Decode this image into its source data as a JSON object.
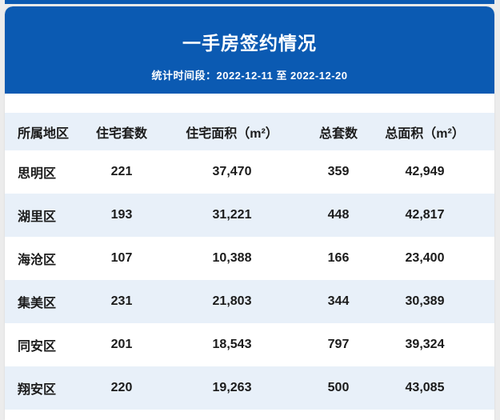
{
  "header": {
    "title": "一手房签约情况",
    "subtitle": "统计时间段：2022-12-11 至 2022-12-20"
  },
  "table": {
    "columns": [
      "所属地区",
      "住宅套数",
      "住宅面积（m²）",
      "总套数",
      "总面积（m²）"
    ],
    "rows": [
      [
        "思明区",
        "221",
        "37,470",
        "359",
        "42,949"
      ],
      [
        "湖里区",
        "193",
        "31,221",
        "448",
        "42,817"
      ],
      [
        "海沧区",
        "107",
        "10,388",
        "166",
        "23,400"
      ],
      [
        "集美区",
        "231",
        "21,803",
        "344",
        "30,389"
      ],
      [
        "同安区",
        "201",
        "18,543",
        "797",
        "39,324"
      ],
      [
        "翔安区",
        "220",
        "19,263",
        "500",
        "43,085"
      ]
    ]
  },
  "colors": {
    "primary_blue": "#0b5ab2",
    "band_light_blue": "#e8f0f9",
    "page_background": "#ececec",
    "text_dark": "#1b1b1b",
    "header_text": "#ffffff"
  },
  "chart_data": {
    "type": "table",
    "title": "一手房签约情况",
    "subtitle": "统计时间段：2022-12-11 至 2022-12-20",
    "columns": [
      "所属地区",
      "住宅套数",
      "住宅面积（m²）",
      "总套数",
      "总面积（m²）"
    ],
    "rows": [
      {
        "district": "思明区",
        "residential_units": 221,
        "residential_area_m2": 37470,
        "total_units": 359,
        "total_area_m2": 42949
      },
      {
        "district": "湖里区",
        "residential_units": 193,
        "residential_area_m2": 31221,
        "total_units": 448,
        "total_area_m2": 42817
      },
      {
        "district": "海沧区",
        "residential_units": 107,
        "residential_area_m2": 10388,
        "total_units": 166,
        "total_area_m2": 23400
      },
      {
        "district": "集美区",
        "residential_units": 231,
        "residential_area_m2": 21803,
        "total_units": 344,
        "total_area_m2": 30389
      },
      {
        "district": "同安区",
        "residential_units": 201,
        "residential_area_m2": 18543,
        "total_units": 797,
        "total_area_m2": 39324
      },
      {
        "district": "翔安区",
        "residential_units": 220,
        "residential_area_m2": 19263,
        "total_units": 500,
        "total_area_m2": 43085
      }
    ],
    "layout": {
      "zebra_striping": true,
      "first_column_align": "left",
      "other_columns_align": "center"
    }
  }
}
